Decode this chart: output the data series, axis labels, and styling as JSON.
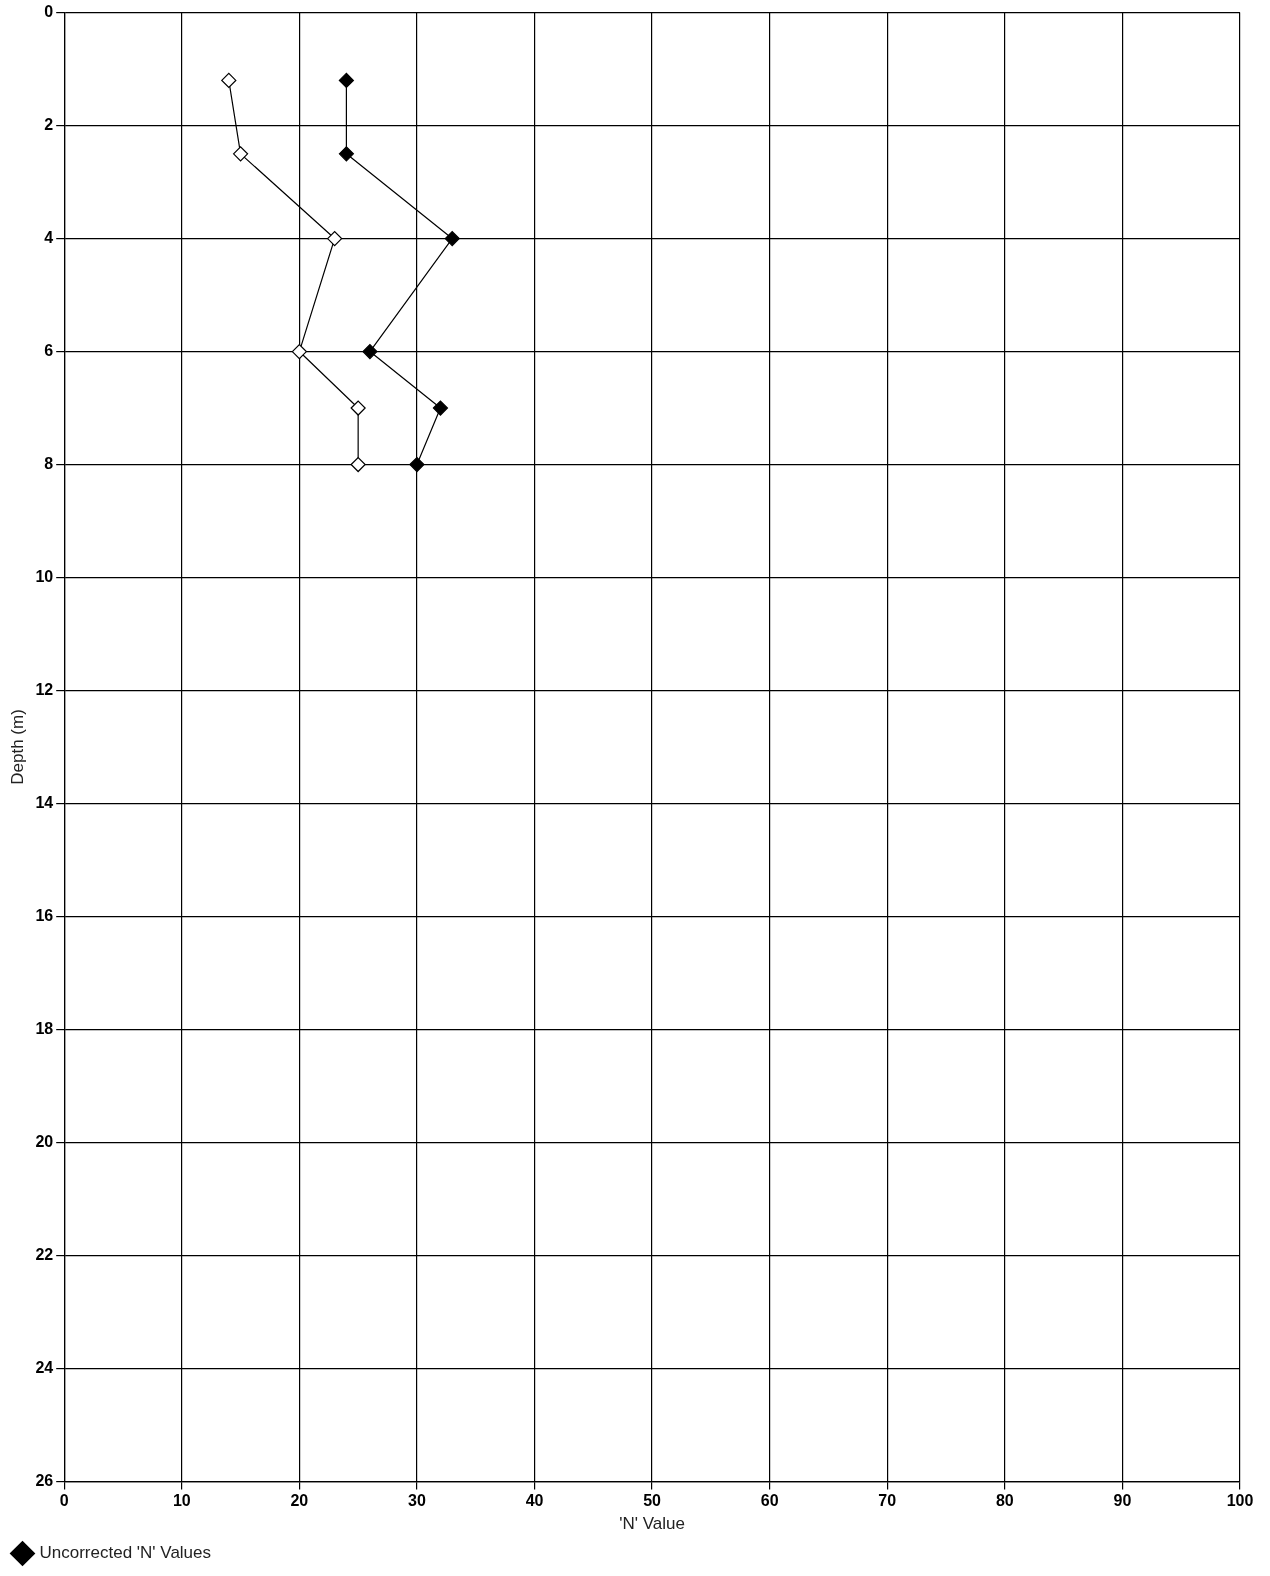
{
  "chart_data": {
    "type": "line",
    "xlabel": "'N' Value",
    "ylabel": "Depth (m)",
    "xlim": [
      0,
      100
    ],
    "xticks": [
      0,
      10,
      20,
      30,
      40,
      50,
      60,
      70,
      80,
      90,
      100
    ],
    "ylim": [
      26,
      0
    ],
    "yticks": [
      0,
      2,
      4,
      6,
      8,
      10,
      12,
      14,
      16,
      18,
      20,
      22,
      24,
      26
    ],
    "grid": true,
    "legend": "bottom left",
    "marker": "diamond",
    "line_style": "solid",
    "series": [
      {
        "name": "Uncorrected 'N' Values",
        "color": "#000000",
        "x": [
          24,
          24,
          33,
          26,
          32,
          30
        ],
        "values": [
          1.2,
          2.5,
          4,
          6,
          7,
          8
        ]
      },
      {
        "color": "#ffffff",
        "x": [
          14,
          15,
          23,
          20,
          25,
          25
        ],
        "values": [
          1.2,
          2.5,
          4,
          6,
          7,
          8
        ]
      }
    ]
  }
}
